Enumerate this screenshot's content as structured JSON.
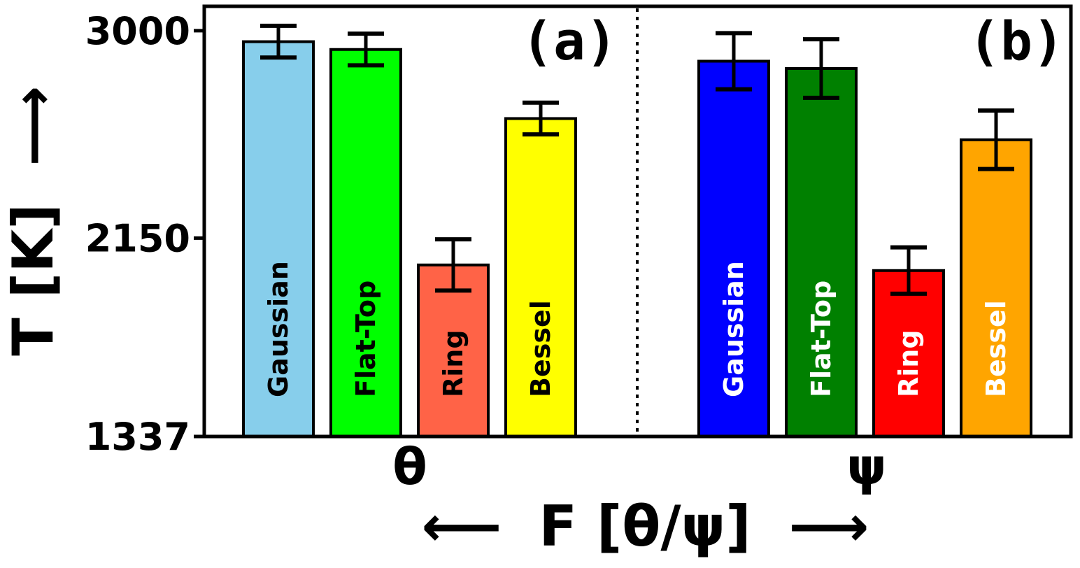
{
  "chart_data": {
    "type": "bar",
    "ylabel": "T [K]",
    "ylabel_arrow": "⟶",
    "xlabel": "F [θ/ψ]",
    "xlabel_arrow_left": "⟵",
    "xlabel_arrow_right": "⟶",
    "ylim": [
      1337,
      3100
    ],
    "yticks": [
      1337,
      2150,
      3000
    ],
    "ytick_labels": [
      "1337",
      "2150",
      "3000"
    ],
    "divider": "dotted",
    "grid": false,
    "panels": [
      {
        "label": "(a)",
        "group": "θ",
        "bars": [
          {
            "name": "Gaussian",
            "value": 2955,
            "err": 65,
            "color": "#87CEEB",
            "text_color": "#000000"
          },
          {
            "name": "Flat-Top",
            "value": 2923,
            "err": 65,
            "color": "#00FF00",
            "text_color": "#000000"
          },
          {
            "name": "Ring",
            "value": 2040,
            "err": 105,
            "color": "#FF6347",
            "text_color": "#000000"
          },
          {
            "name": "Bessel",
            "value": 2640,
            "err": 65,
            "color": "#FFFF00",
            "text_color": "#000000"
          }
        ]
      },
      {
        "label": "(b)",
        "group": "ψ",
        "bars": [
          {
            "name": "Gaussian",
            "value": 2875,
            "err": 115,
            "color": "#0000FF",
            "text_color": "#FFFFFF"
          },
          {
            "name": "Flat-Top",
            "value": 2845,
            "err": 120,
            "color": "#008000",
            "text_color": "#FFFFFF"
          },
          {
            "name": "Ring",
            "value": 2017,
            "err": 95,
            "color": "#FF0000",
            "text_color": "#FFFFFF"
          },
          {
            "name": "Bessel",
            "value": 2553,
            "err": 120,
            "color": "#FFA500",
            "text_color": "#FFFFFF"
          }
        ]
      }
    ]
  }
}
